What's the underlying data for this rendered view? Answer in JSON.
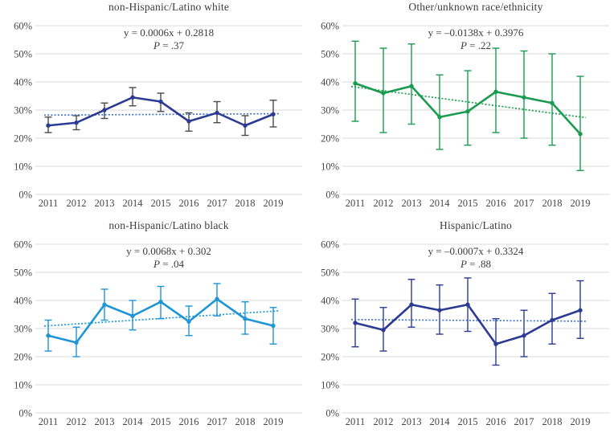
{
  "figure": {
    "background": "#ffffff"
  },
  "styles": {
    "grid_color": "#d9d9d9",
    "text_color": "#3c3c3c",
    "tick_color": "#464646"
  },
  "chart_data": [
    {
      "type": "line",
      "title": "non-Hispanic/Latino white",
      "equation": "y = 0.0006x + 0.2818",
      "p_label": "P = .37",
      "categories": [
        "2011",
        "2012",
        "2013",
        "2014",
        "2015",
        "2016",
        "2017",
        "2018",
        "2019"
      ],
      "values": [
        24.5,
        25.5,
        30,
        34.5,
        33,
        26,
        29,
        24.5,
        28.5
      ],
      "error_low": [
        22,
        23,
        27,
        31.5,
        29.5,
        22.5,
        25.5,
        21,
        24
      ],
      "error_high": [
        27.5,
        28,
        32.5,
        38,
        36,
        29,
        33,
        28,
        33.5
      ],
      "trendline": {
        "start": 28.2,
        "end": 28.7,
        "style": "dotted"
      },
      "series_color": "#2b3b94",
      "trend_color": "#4472c4",
      "error_color": "#4a4a4a",
      "ylim": [
        0,
        60
      ],
      "yticks": [
        "0%",
        "10%",
        "20%",
        "30%",
        "40%",
        "50%",
        "60%"
      ],
      "grid": true,
      "legend": "none"
    },
    {
      "type": "line",
      "title": "Other/unknown race/ethnicity",
      "equation": "y = –0.0138x + 0.3976",
      "p_label": "P = .22",
      "categories": [
        "2011",
        "2012",
        "2013",
        "2014",
        "2015",
        "2016",
        "2017",
        "2018",
        "2019"
      ],
      "values": [
        39.5,
        36,
        38.5,
        27.5,
        29.5,
        36.5,
        34.5,
        32.5,
        21.5
      ],
      "error_low": [
        26,
        22,
        25,
        16,
        17.5,
        22,
        20,
        17.5,
        8.5
      ],
      "error_high": [
        54.5,
        52,
        53.5,
        42.5,
        44,
        52,
        51,
        50,
        42
      ],
      "trendline": {
        "start": 38.4,
        "end": 27.3,
        "style": "dotted"
      },
      "series_color": "#1a9b50",
      "trend_color": "#1a9b50",
      "error_color": "#1a9b50",
      "ylim": [
        0,
        60
      ],
      "yticks": [
        "0%",
        "10%",
        "20%",
        "30%",
        "40%",
        "50%",
        "60%"
      ],
      "grid": true,
      "legend": "none"
    },
    {
      "type": "line",
      "title": "non-Hispanic/Latino black",
      "equation": "y = 0.0068x + 0.302",
      "p_label": "P = .04",
      "categories": [
        "2011",
        "2012",
        "2013",
        "2014",
        "2015",
        "2016",
        "2017",
        "2018",
        "2019"
      ],
      "values": [
        27.5,
        25,
        38.5,
        34.5,
        39.5,
        32.5,
        40.5,
        33.5,
        31
      ],
      "error_low": [
        22,
        20,
        33,
        29.5,
        33.5,
        27.5,
        34.5,
        28,
        24.5
      ],
      "error_high": [
        33,
        30.5,
        44,
        40,
        45,
        38,
        46,
        39.5,
        37.5
      ],
      "trendline": {
        "start": 30.9,
        "end": 36.3,
        "style": "dotted"
      },
      "series_color": "#1e95d5",
      "trend_color": "#1e95d5",
      "error_color": "#1e95d5",
      "ylim": [
        0,
        60
      ],
      "yticks": [
        "0%",
        "10%",
        "20%",
        "30%",
        "40%",
        "50%",
        "60%"
      ],
      "grid": true,
      "legend": "none"
    },
    {
      "type": "line",
      "title": "Hispanic/Latino",
      "equation": "y = –0.0007x + 0.3324",
      "p_label": "P = .88",
      "categories": [
        "2011",
        "2012",
        "2013",
        "2014",
        "2015",
        "2016",
        "2017",
        "2018",
        "2019"
      ],
      "values": [
        32,
        29.5,
        38.5,
        36.5,
        38.5,
        24.5,
        27.5,
        33,
        36.5
      ],
      "error_low": [
        23.5,
        22,
        30.5,
        28,
        29,
        17,
        20,
        24.5,
        26.5
      ],
      "error_high": [
        40.5,
        37.5,
        47.5,
        45.5,
        48,
        33.5,
        36.5,
        42.5,
        47
      ],
      "trendline": {
        "start": 33.2,
        "end": 32.6,
        "style": "dotted"
      },
      "series_color": "#2b3b94",
      "trend_color": "#4472c4",
      "error_color": "#2b3b94",
      "ylim": [
        0,
        60
      ],
      "yticks": [
        "0%",
        "10%",
        "20%",
        "30%",
        "40%",
        "50%",
        "60%"
      ],
      "grid": true,
      "legend": "none"
    }
  ]
}
